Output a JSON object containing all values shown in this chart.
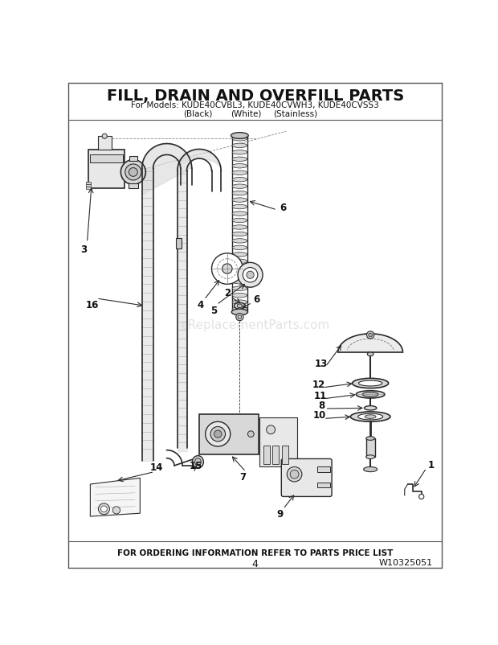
{
  "title": "FILL, DRAIN AND OVERFILL PARTS",
  "subtitle1": "For Models: KUDE40CVBL3, KUDE40CVWH3, KUDE40CVSS3",
  "subtitle2_black": "(Black)",
  "subtitle2_white": "(White)",
  "subtitle2_stainless": "(Stainless)",
  "footer1": "FOR ORDERING INFORMATION REFER TO PARTS PRICE LIST",
  "footer2": "4",
  "footer3": "W10325051",
  "bg_color": "#ffffff",
  "line_color": "#2a2a2a",
  "gray1": "#c8c8c8",
  "gray2": "#d8d8d8",
  "gray3": "#e8e8e8",
  "watermark": "eReplacementParts.com"
}
